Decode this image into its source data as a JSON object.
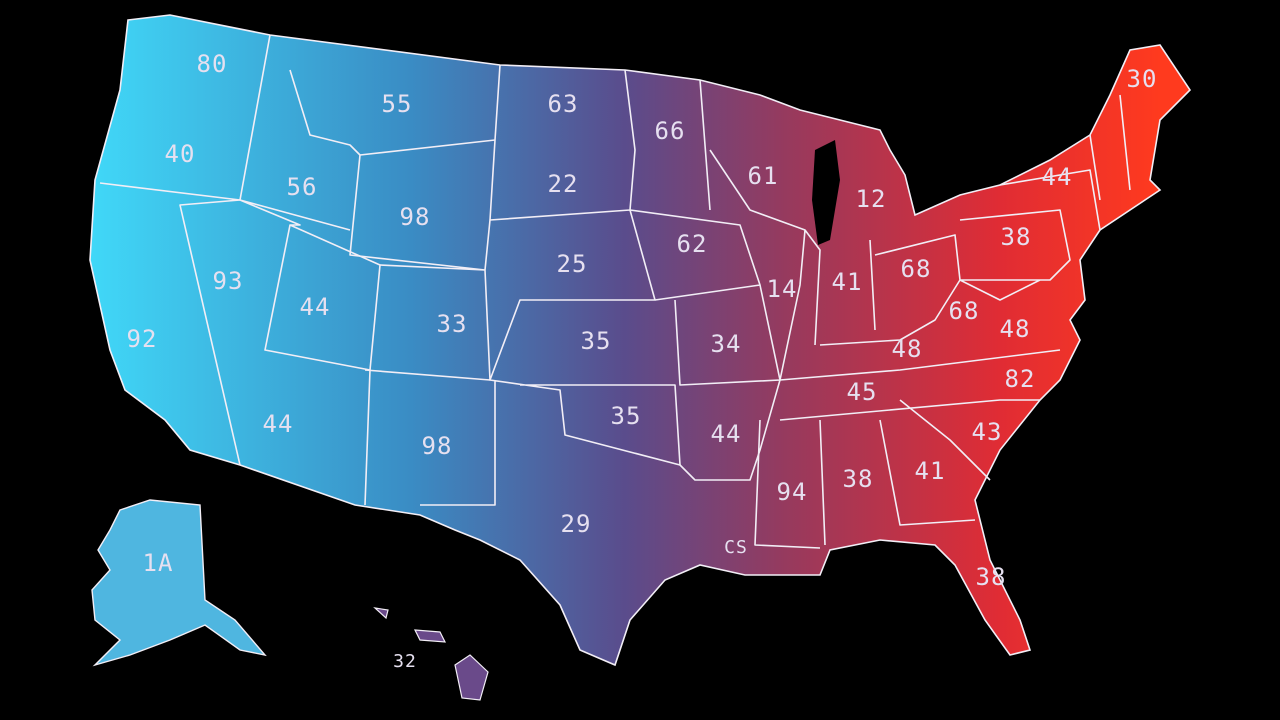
{
  "states": [
    {
      "label": "80"
    },
    {
      "label": "40"
    },
    {
      "label": "92"
    },
    {
      "label": "93"
    },
    {
      "label": "56"
    },
    {
      "label": "55"
    },
    {
      "label": "98"
    },
    {
      "label": "44"
    },
    {
      "label": "44"
    },
    {
      "label": "33"
    },
    {
      "label": "98"
    },
    {
      "label": "63"
    },
    {
      "label": "22"
    },
    {
      "label": "25"
    },
    {
      "label": "35"
    },
    {
      "label": "35"
    },
    {
      "label": "29"
    },
    {
      "label": "66"
    },
    {
      "label": "62"
    },
    {
      "label": "34"
    },
    {
      "label": "44"
    },
    {
      "label": "CS"
    },
    {
      "label": "61"
    },
    {
      "label": "14"
    },
    {
      "label": "12"
    },
    {
      "label": "41"
    },
    {
      "label": "68"
    },
    {
      "label": "48"
    },
    {
      "label": "45"
    },
    {
      "label": "94"
    },
    {
      "label": "38"
    },
    {
      "label": "41"
    },
    {
      "label": "38"
    },
    {
      "label": "43"
    },
    {
      "label": "82"
    },
    {
      "label": "48"
    },
    {
      "label": "68"
    },
    {
      "label": "38"
    },
    {
      "label": "44"
    },
    {
      "label": "30"
    },
    {
      "label": "1A"
    },
    {
      "label": "32"
    }
  ]
}
